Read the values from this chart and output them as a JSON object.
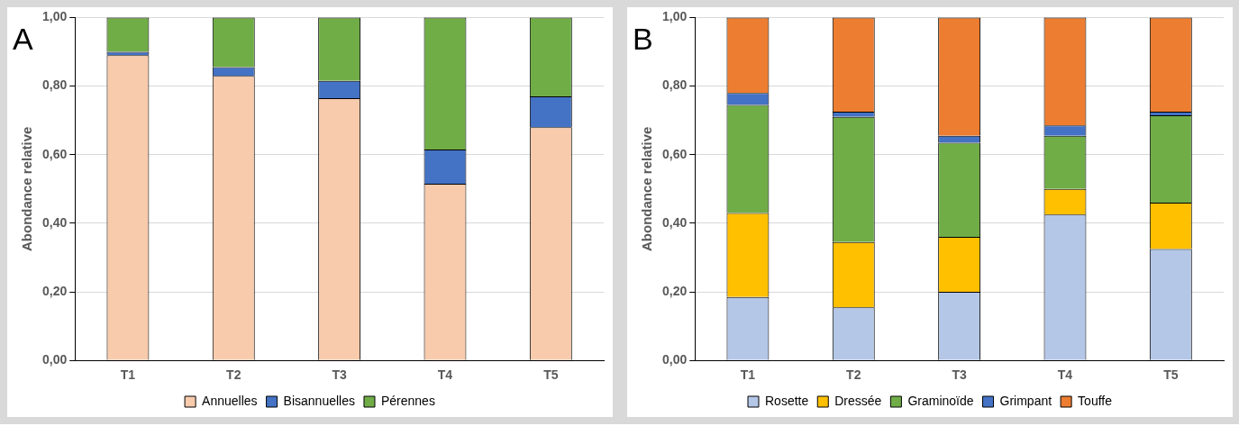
{
  "chart_data": [
    {
      "type": "bar",
      "title": "A",
      "ylabel": "Abondance relative",
      "categories": [
        "T1",
        "T2",
        "T3",
        "T4",
        "T5"
      ],
      "stacked": true,
      "series": [
        {
          "name": "Annuelles",
          "color": "#f8cbad",
          "values": [
            0.89,
            0.83,
            0.765,
            0.515,
            0.68
          ]
        },
        {
          "name": "Bisannuelles",
          "color": "#4472c4",
          "values": [
            0.01,
            0.025,
            0.05,
            0.1,
            0.09
          ]
        },
        {
          "name": "Pérennes",
          "color": "#70ad47",
          "values": [
            0.1,
            0.145,
            0.185,
            0.385,
            0.23
          ]
        }
      ],
      "ylim": [
        0,
        1
      ],
      "yticks": [
        {
          "value": 0,
          "label": "0,00"
        },
        {
          "value": 0.2,
          "label": "0,20"
        },
        {
          "value": 0.4,
          "label": "0,40"
        },
        {
          "value": 0.6,
          "label": "0,60"
        },
        {
          "value": 0.8,
          "label": "0,80"
        },
        {
          "value": 1,
          "label": "1,00"
        }
      ],
      "grid": "y",
      "legend": "bottom"
    },
    {
      "type": "bar",
      "title": "B",
      "ylabel": "Abondance relative",
      "categories": [
        "T1",
        "T2",
        "T3",
        "T4",
        "T5"
      ],
      "stacked": true,
      "series": [
        {
          "name": "Rosette",
          "color": "#b4c7e7",
          "values": [
            0.185,
            0.155,
            0.2,
            0.425,
            0.325
          ]
        },
        {
          "name": "Dressée",
          "color": "#ffc000",
          "values": [
            0.245,
            0.19,
            0.16,
            0.075,
            0.135
          ]
        },
        {
          "name": "Graminoïde",
          "color": "#70ad47",
          "values": [
            0.315,
            0.365,
            0.275,
            0.155,
            0.255
          ]
        },
        {
          "name": "Grimpant",
          "color": "#4472c4",
          "values": [
            0.035,
            0.015,
            0.02,
            0.03,
            0.01
          ]
        },
        {
          "name": "Touffe",
          "color": "#ed7d31",
          "values": [
            0.22,
            0.275,
            0.345,
            0.315,
            0.275
          ]
        }
      ],
      "ylim": [
        0,
        1
      ],
      "yticks": [
        {
          "value": 0,
          "label": "0,00"
        },
        {
          "value": 0.2,
          "label": "0,20"
        },
        {
          "value": 0.4,
          "label": "0,40"
        },
        {
          "value": 0.6,
          "label": "0,60"
        },
        {
          "value": 0.8,
          "label": "0,80"
        },
        {
          "value": 1,
          "label": "1,00"
        }
      ],
      "grid": "y",
      "legend": "bottom"
    }
  ]
}
